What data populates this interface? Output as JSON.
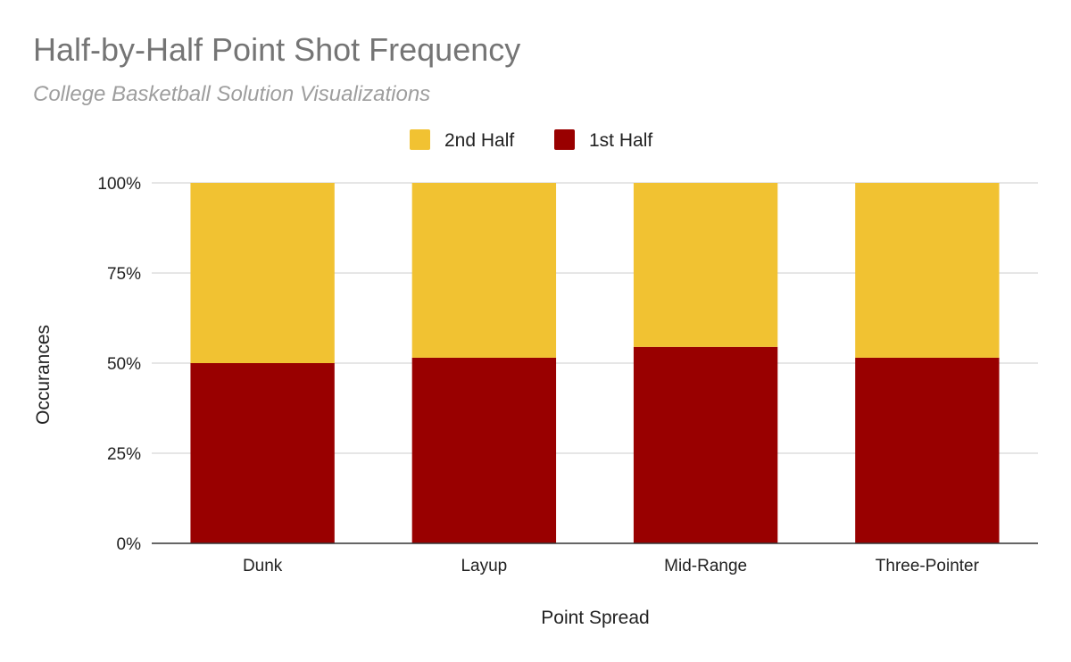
{
  "chart_data": {
    "type": "bar",
    "stacked": "percent",
    "title": "Half-by-Half Point Shot Frequency",
    "subtitle": "College Basketball Solution Visualizations",
    "xlabel": "Point Spread",
    "ylabel": "Occurances",
    "categories": [
      "Dunk",
      "Layup",
      "Mid-Range",
      "Three-Pointer"
    ],
    "series": [
      {
        "name": "1st Half",
        "color": "#990000",
        "values": [
          0.5,
          0.515,
          0.545,
          0.515
        ]
      },
      {
        "name": "2nd Half",
        "color": "#f1c232",
        "values": [
          0.5,
          0.485,
          0.455,
          0.485
        ]
      }
    ],
    "legend_order": [
      "2nd Half",
      "1st Half"
    ],
    "legend_position": "top",
    "ylim": [
      0,
      1
    ],
    "yticks": [
      "0%",
      "25%",
      "50%",
      "75%",
      "100%"
    ],
    "grid": true
  }
}
